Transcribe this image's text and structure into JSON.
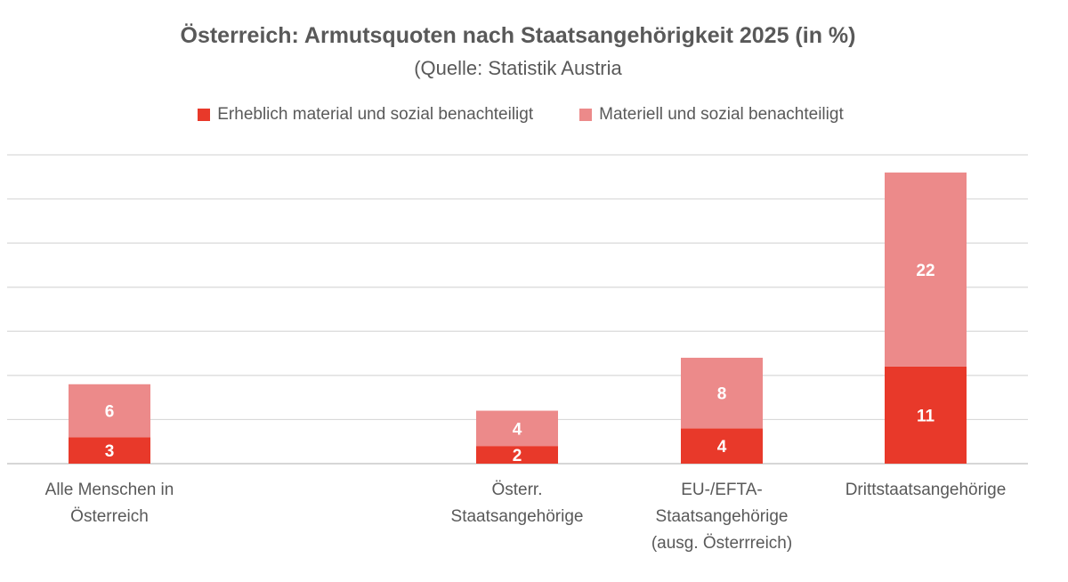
{
  "chart_data": {
    "type": "bar",
    "stacked": true,
    "title": "Österreich: Armutsquoten nach Staatsangehörigkeit 2025 (in %)",
    "subtitle": "(Quelle: Statistik Austria",
    "xlabel": "",
    "ylabel": "",
    "ylim": [
      0,
      35
    ],
    "grid": true,
    "legend_position": "top",
    "categories": [
      "Alle Menschen in\nÖsterreich",
      "Österr.\nStaatsangehörige",
      "EU-/EFTA-\nStaatsangehörige\n(ausg. Österrreich)",
      "Drittstaatsangehörige"
    ],
    "series": [
      {
        "name": "Erheblich material und sozial benachteiligt",
        "color": "#E8392A",
        "values": [
          3,
          2,
          4,
          11
        ]
      },
      {
        "name": "Materiell und sozial benachteiligt",
        "color": "#EC8A8A",
        "values": [
          6,
          4,
          8,
          22
        ]
      }
    ]
  }
}
